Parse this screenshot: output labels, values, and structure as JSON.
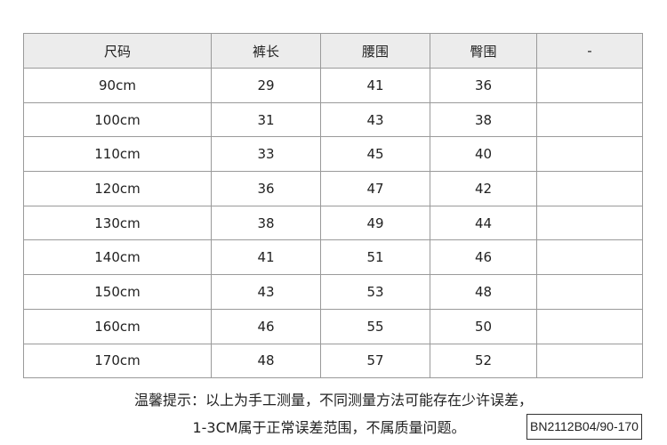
{
  "table": {
    "headers": [
      "尺码",
      "裤长",
      "腰围",
      "臀围",
      "-"
    ],
    "rows": [
      [
        "90cm",
        "29",
        "41",
        "36",
        ""
      ],
      [
        "100cm",
        "31",
        "43",
        "38",
        ""
      ],
      [
        "110cm",
        "33",
        "45",
        "40",
        ""
      ],
      [
        "120cm",
        "36",
        "47",
        "42",
        ""
      ],
      [
        "130cm",
        "38",
        "49",
        "44",
        ""
      ],
      [
        "140cm",
        "41",
        "51",
        "46",
        ""
      ],
      [
        "150cm",
        "43",
        "53",
        "48",
        ""
      ],
      [
        "160cm",
        "46",
        "55",
        "50",
        ""
      ],
      [
        "170cm",
        "48",
        "57",
        "52",
        ""
      ]
    ]
  },
  "note": {
    "line1": "温馨提示：以上为手工测量，不同测量方法可能存在少许误差，",
    "line2": "1-3CM属于正常误差范围，不属质量问题。"
  },
  "product_code": "BN2112B04/90-170"
}
